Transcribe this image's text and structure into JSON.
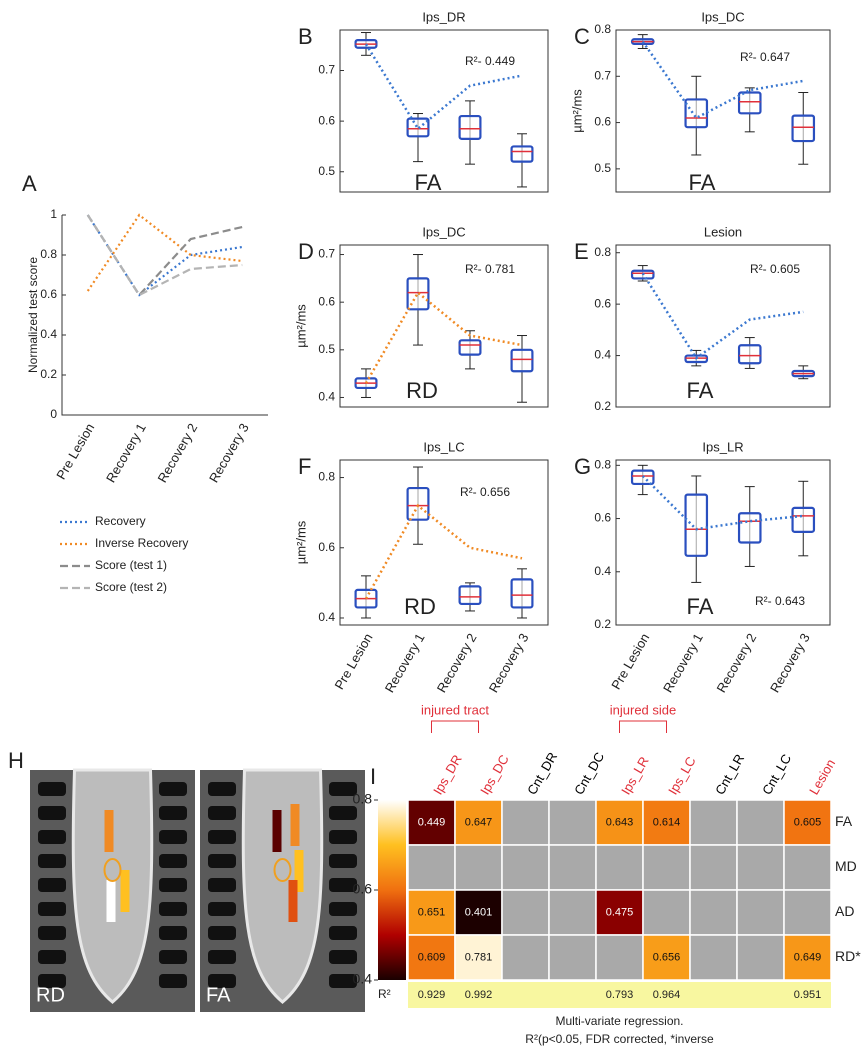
{
  "chart_data": [
    {
      "type": "line",
      "label": "A",
      "ylabel": "Normalized test score",
      "categories": [
        "Pre Lesion",
        "Recovery 1",
        "Recovery 2",
        "Recovery 3"
      ],
      "ylim": [
        0,
        1
      ],
      "yticks": [
        0,
        0.2,
        0.4,
        0.6,
        0.8,
        1
      ],
      "series": [
        {
          "name": "Recovery",
          "color": "#3b78d0",
          "style": "dotted",
          "values": [
            1,
            0.6,
            0.8,
            0.84
          ]
        },
        {
          "name": "Inverse Recovery",
          "color": "#f08a24",
          "style": "dotted",
          "values": [
            0.62,
            1.0,
            0.8,
            0.77
          ]
        },
        {
          "name": "Score (test 1)",
          "color": "#8c8c8c",
          "style": "dashed",
          "values": [
            1,
            0.6,
            0.88,
            0.94
          ]
        },
        {
          "name": "Score (test 2)",
          "color": "#b4b4b4",
          "style": "dashed",
          "values": [
            1,
            0.6,
            0.73,
            0.75
          ]
        }
      ]
    },
    {
      "type": "box",
      "label": "B",
      "title": "Ips_DR",
      "annotation": "R²- 0.449",
      "measure": "FA",
      "ylim": [
        0.46,
        0.78
      ],
      "yticks": [
        0.5,
        0.6,
        0.7
      ],
      "fit": {
        "color": "#3b78d0",
        "values": [
          0.752,
          0.585,
          0.67,
          0.69
        ]
      },
      "boxes": [
        {
          "min": 0.73,
          "q1": 0.745,
          "median": 0.752,
          "q3": 0.76,
          "max": 0.775
        },
        {
          "min": 0.52,
          "q1": 0.57,
          "median": 0.585,
          "q3": 0.605,
          "max": 0.615
        },
        {
          "min": 0.515,
          "q1": 0.565,
          "median": 0.585,
          "q3": 0.61,
          "max": 0.64
        },
        {
          "min": 0.47,
          "q1": 0.52,
          "median": 0.54,
          "q3": 0.55,
          "max": 0.575
        }
      ]
    },
    {
      "type": "box",
      "label": "C",
      "title": "Ips_DC",
      "annotation": "R²- 0.647",
      "measure": "FA",
      "ylabel": "µm²/ms",
      "ylim": [
        0.45,
        0.8
      ],
      "yticks": [
        0.5,
        0.6,
        0.7,
        0.8
      ],
      "fit": {
        "color": "#3b78d0",
        "values": [
          0.775,
          0.61,
          0.67,
          0.69
        ]
      },
      "boxes": [
        {
          "min": 0.76,
          "q1": 0.77,
          "median": 0.775,
          "q3": 0.78,
          "max": 0.79
        },
        {
          "min": 0.53,
          "q1": 0.59,
          "median": 0.61,
          "q3": 0.65,
          "max": 0.7
        },
        {
          "min": 0.58,
          "q1": 0.62,
          "median": 0.645,
          "q3": 0.665,
          "max": 0.675
        },
        {
          "min": 0.51,
          "q1": 0.56,
          "median": 0.59,
          "q3": 0.615,
          "max": 0.665
        }
      ]
    },
    {
      "type": "box",
      "label": "D",
      "title": "Ips_DC",
      "annotation": "R²- 0.781",
      "measure": "RD",
      "ylabel": "µm²/ms",
      "ylim": [
        0.38,
        0.72
      ],
      "yticks": [
        0.4,
        0.5,
        0.6,
        0.7
      ],
      "fit": {
        "color": "#f08a24",
        "values": [
          0.43,
          0.62,
          0.53,
          0.51
        ]
      },
      "boxes": [
        {
          "min": 0.4,
          "q1": 0.42,
          "median": 0.43,
          "q3": 0.44,
          "max": 0.46
        },
        {
          "min": 0.51,
          "q1": 0.585,
          "median": 0.62,
          "q3": 0.65,
          "max": 0.7
        },
        {
          "min": 0.46,
          "q1": 0.49,
          "median": 0.51,
          "q3": 0.52,
          "max": 0.54
        },
        {
          "min": 0.39,
          "q1": 0.455,
          "median": 0.48,
          "q3": 0.5,
          "max": 0.53
        }
      ]
    },
    {
      "type": "box",
      "label": "E",
      "title": "Lesion",
      "annotation": "R²- 0.605",
      "measure": "FA",
      "ylim": [
        0.2,
        0.83
      ],
      "yticks": [
        0.2,
        0.4,
        0.6,
        0.8
      ],
      "fit": {
        "color": "#3b78d0",
        "values": [
          0.72,
          0.39,
          0.54,
          0.57
        ]
      },
      "boxes": [
        {
          "min": 0.69,
          "q1": 0.7,
          "median": 0.72,
          "q3": 0.73,
          "max": 0.75
        },
        {
          "min": 0.36,
          "q1": 0.375,
          "median": 0.39,
          "q3": 0.4,
          "max": 0.42
        },
        {
          "min": 0.35,
          "q1": 0.37,
          "median": 0.4,
          "q3": 0.44,
          "max": 0.47
        },
        {
          "min": 0.31,
          "q1": 0.32,
          "median": 0.33,
          "q3": 0.34,
          "max": 0.36
        }
      ]
    },
    {
      "type": "box",
      "label": "F",
      "title": "Ips_LC",
      "annotation": "R²- 0.656",
      "measure": "RD",
      "ylabel": "µm²/ms",
      "ylim": [
        0.38,
        0.85
      ],
      "yticks": [
        0.4,
        0.6,
        0.8
      ],
      "categories": [
        "Pre Lesion",
        "Recovery 1",
        "Recovery 2",
        "Recovery 3"
      ],
      "fit": {
        "color": "#f08a24",
        "values": [
          0.455,
          0.72,
          0.6,
          0.57
        ]
      },
      "boxes": [
        {
          "min": 0.4,
          "q1": 0.43,
          "median": 0.455,
          "q3": 0.48,
          "max": 0.52
        },
        {
          "min": 0.61,
          "q1": 0.68,
          "median": 0.72,
          "q3": 0.77,
          "max": 0.83
        },
        {
          "min": 0.42,
          "q1": 0.44,
          "median": 0.46,
          "q3": 0.49,
          "max": 0.5
        },
        {
          "min": 0.4,
          "q1": 0.43,
          "median": 0.465,
          "q3": 0.51,
          "max": 0.54
        }
      ]
    },
    {
      "type": "box",
      "label": "G",
      "title": "Ips_LR",
      "annotation": "R²- 0.643",
      "measure": "FA",
      "ylim": [
        0.2,
        0.82
      ],
      "yticks": [
        0.2,
        0.4,
        0.6,
        0.8
      ],
      "categories": [
        "Pre Lesion",
        "Recovery 1",
        "Recovery 2",
        "Recovery 3"
      ],
      "fit": {
        "color": "#3b78d0",
        "values": [
          0.76,
          0.56,
          0.59,
          0.61
        ]
      },
      "boxes": [
        {
          "min": 0.69,
          "q1": 0.73,
          "median": 0.76,
          "q3": 0.78,
          "max": 0.8
        },
        {
          "min": 0.36,
          "q1": 0.46,
          "median": 0.56,
          "q3": 0.69,
          "max": 0.76
        },
        {
          "min": 0.42,
          "q1": 0.51,
          "median": 0.59,
          "q3": 0.62,
          "max": 0.72
        },
        {
          "min": 0.46,
          "q1": 0.55,
          "median": 0.61,
          "q3": 0.64,
          "max": 0.74
        }
      ]
    },
    {
      "type": "image",
      "label": "H",
      "captions": [
        "RD",
        "FA"
      ]
    },
    {
      "type": "heatmap",
      "label": "I",
      "groups": [
        "injured tract",
        "injured side"
      ],
      "columns": [
        "Ips_DR",
        "Ips_DC",
        "Cnt_DR",
        "Cnt_DC",
        "Ips_LR",
        "Ips_LC",
        "Cnt_LR",
        "Cnt_LC",
        "Lesion"
      ],
      "column_colors": [
        "#e0303a",
        "#e0303a",
        "#000000",
        "#000000",
        "#e0303a",
        "#e0303a",
        "#000000",
        "#000000",
        "#e0303a"
      ],
      "rows": [
        "FA",
        "MD",
        "AD",
        "RD*"
      ],
      "values": [
        [
          0.449,
          0.647,
          null,
          null,
          0.643,
          0.614,
          null,
          null,
          0.605
        ],
        [
          null,
          null,
          null,
          null,
          null,
          null,
          null,
          null,
          null
        ],
        [
          0.651,
          0.401,
          null,
          null,
          0.475,
          null,
          null,
          null,
          null
        ],
        [
          0.609,
          0.781,
          null,
          null,
          null,
          0.656,
          null,
          null,
          0.649
        ]
      ],
      "r2_label": "R²",
      "r2": [
        0.929,
        0.992,
        null,
        null,
        0.793,
        0.964,
        null,
        null,
        0.951
      ],
      "colormap": [
        "#1a0000",
        "#b00000",
        "#f07010",
        "#ffc020",
        "#ffffff"
      ],
      "clim": [
        0.4,
        0.8
      ],
      "cticks": [
        0.4,
        0.6,
        0.8
      ],
      "notes": [
        "Multi-variate regression.",
        "R²(p<0.05, FDR corrected, *inverse"
      ]
    }
  ]
}
